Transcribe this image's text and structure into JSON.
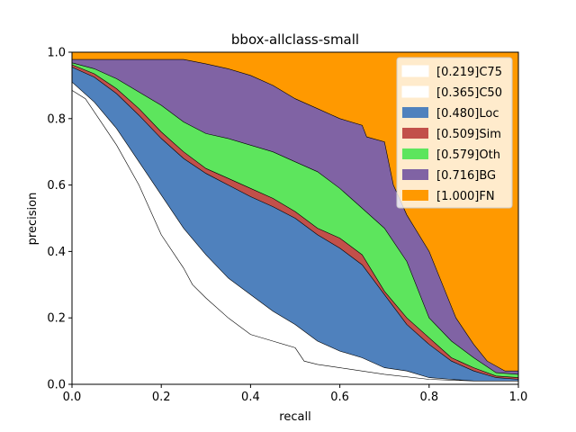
{
  "chart_data": {
    "type": "area",
    "title": "bbox-allclass-small",
    "xlabel": "recall",
    "ylabel": "precision",
    "xlim": [
      0,
      1
    ],
    "ylim": [
      0,
      1
    ],
    "xticks": [
      "0.0",
      "0.2",
      "0.4",
      "0.6",
      "0.8",
      "1.0"
    ],
    "yticks": [
      "0.0",
      "0.2",
      "0.4",
      "0.6",
      "0.8",
      "1.0"
    ],
    "legend_position": "top-right",
    "series": [
      {
        "name": "[1.000]FN",
        "color": "#ff9900",
        "points": [
          [
            0,
            1
          ],
          [
            1,
            1
          ]
        ]
      },
      {
        "name": "[0.716]BG",
        "color": "#8063a4",
        "points": [
          [
            0,
            0.978
          ],
          [
            0.15,
            0.978
          ],
          [
            0.25,
            0.978
          ],
          [
            0.3,
            0.965
          ],
          [
            0.35,
            0.95
          ],
          [
            0.4,
            0.93
          ],
          [
            0.45,
            0.9
          ],
          [
            0.5,
            0.86
          ],
          [
            0.55,
            0.83
          ],
          [
            0.6,
            0.8
          ],
          [
            0.65,
            0.78
          ],
          [
            0.66,
            0.745
          ],
          [
            0.7,
            0.73
          ],
          [
            0.72,
            0.6
          ],
          [
            0.75,
            0.51
          ],
          [
            0.8,
            0.4
          ],
          [
            0.83,
            0.3
          ],
          [
            0.86,
            0.2
          ],
          [
            0.9,
            0.12
          ],
          [
            0.93,
            0.07
          ],
          [
            0.97,
            0.04
          ],
          [
            1,
            0.04
          ]
        ]
      },
      {
        "name": "[0.579]Oth",
        "color": "#5de55d",
        "points": [
          [
            0,
            0.968
          ],
          [
            0.05,
            0.95
          ],
          [
            0.1,
            0.92
          ],
          [
            0.15,
            0.88
          ],
          [
            0.2,
            0.84
          ],
          [
            0.25,
            0.79
          ],
          [
            0.3,
            0.755
          ],
          [
            0.35,
            0.74
          ],
          [
            0.4,
            0.72
          ],
          [
            0.45,
            0.7
          ],
          [
            0.5,
            0.67
          ],
          [
            0.55,
            0.64
          ],
          [
            0.6,
            0.59
          ],
          [
            0.65,
            0.53
          ],
          [
            0.7,
            0.47
          ],
          [
            0.75,
            0.37
          ],
          [
            0.8,
            0.2
          ],
          [
            0.85,
            0.13
          ],
          [
            0.9,
            0.08
          ],
          [
            0.95,
            0.035
          ],
          [
            1,
            0.03
          ]
        ]
      },
      {
        "name": "[0.509]Sim",
        "color": "#c2504a",
        "points": [
          [
            0,
            0.962
          ],
          [
            0.05,
            0.935
          ],
          [
            0.1,
            0.89
          ],
          [
            0.15,
            0.83
          ],
          [
            0.2,
            0.76
          ],
          [
            0.25,
            0.7
          ],
          [
            0.3,
            0.65
          ],
          [
            0.35,
            0.62
          ],
          [
            0.4,
            0.59
          ],
          [
            0.45,
            0.56
          ],
          [
            0.5,
            0.52
          ],
          [
            0.55,
            0.47
          ],
          [
            0.6,
            0.44
          ],
          [
            0.65,
            0.39
          ],
          [
            0.7,
            0.28
          ],
          [
            0.75,
            0.2
          ],
          [
            0.8,
            0.14
          ],
          [
            0.85,
            0.08
          ],
          [
            0.9,
            0.05
          ],
          [
            0.95,
            0.025
          ],
          [
            1,
            0.02
          ]
        ]
      },
      {
        "name": "[0.480]Loc",
        "color": "#4f81bd",
        "points": [
          [
            0,
            0.955
          ],
          [
            0.05,
            0.925
          ],
          [
            0.1,
            0.875
          ],
          [
            0.15,
            0.81
          ],
          [
            0.2,
            0.74
          ],
          [
            0.25,
            0.68
          ],
          [
            0.3,
            0.635
          ],
          [
            0.35,
            0.6
          ],
          [
            0.4,
            0.565
          ],
          [
            0.45,
            0.535
          ],
          [
            0.5,
            0.5
          ],
          [
            0.55,
            0.45
          ],
          [
            0.6,
            0.41
          ],
          [
            0.65,
            0.36
          ],
          [
            0.7,
            0.27
          ],
          [
            0.75,
            0.18
          ],
          [
            0.8,
            0.12
          ],
          [
            0.85,
            0.07
          ],
          [
            0.9,
            0.04
          ],
          [
            0.95,
            0.02
          ],
          [
            1,
            0.015
          ]
        ]
      },
      {
        "name": "[0.365]C50",
        "color": "#ffffff",
        "points": [
          [
            0,
            0.91
          ],
          [
            0.05,
            0.85
          ],
          [
            0.1,
            0.77
          ],
          [
            0.15,
            0.67
          ],
          [
            0.2,
            0.57
          ],
          [
            0.25,
            0.47
          ],
          [
            0.3,
            0.39
          ],
          [
            0.35,
            0.32
          ],
          [
            0.4,
            0.27
          ],
          [
            0.45,
            0.22
          ],
          [
            0.5,
            0.18
          ],
          [
            0.55,
            0.13
          ],
          [
            0.6,
            0.1
          ],
          [
            0.65,
            0.08
          ],
          [
            0.7,
            0.05
          ],
          [
            0.75,
            0.04
          ],
          [
            0.8,
            0.02
          ],
          [
            0.85,
            0.015
          ],
          [
            0.9,
            0.01
          ],
          [
            0.95,
            0.01
          ],
          [
            1,
            0.01
          ]
        ]
      },
      {
        "name": "[0.219]C75",
        "color": "#ffffff",
        "points": [
          [
            0,
            0.885
          ],
          [
            0.03,
            0.86
          ],
          [
            0.06,
            0.8
          ],
          [
            0.1,
            0.72
          ],
          [
            0.15,
            0.6
          ],
          [
            0.2,
            0.45
          ],
          [
            0.25,
            0.35
          ],
          [
            0.27,
            0.3
          ],
          [
            0.3,
            0.26
          ],
          [
            0.35,
            0.2
          ],
          [
            0.4,
            0.15
          ],
          [
            0.45,
            0.13
          ],
          [
            0.5,
            0.11
          ],
          [
            0.52,
            0.07
          ],
          [
            0.55,
            0.06
          ],
          [
            0.6,
            0.05
          ],
          [
            0.7,
            0.03
          ],
          [
            0.8,
            0.015
          ],
          [
            0.9,
            0.01
          ],
          [
            1,
            0.01
          ]
        ]
      }
    ]
  }
}
